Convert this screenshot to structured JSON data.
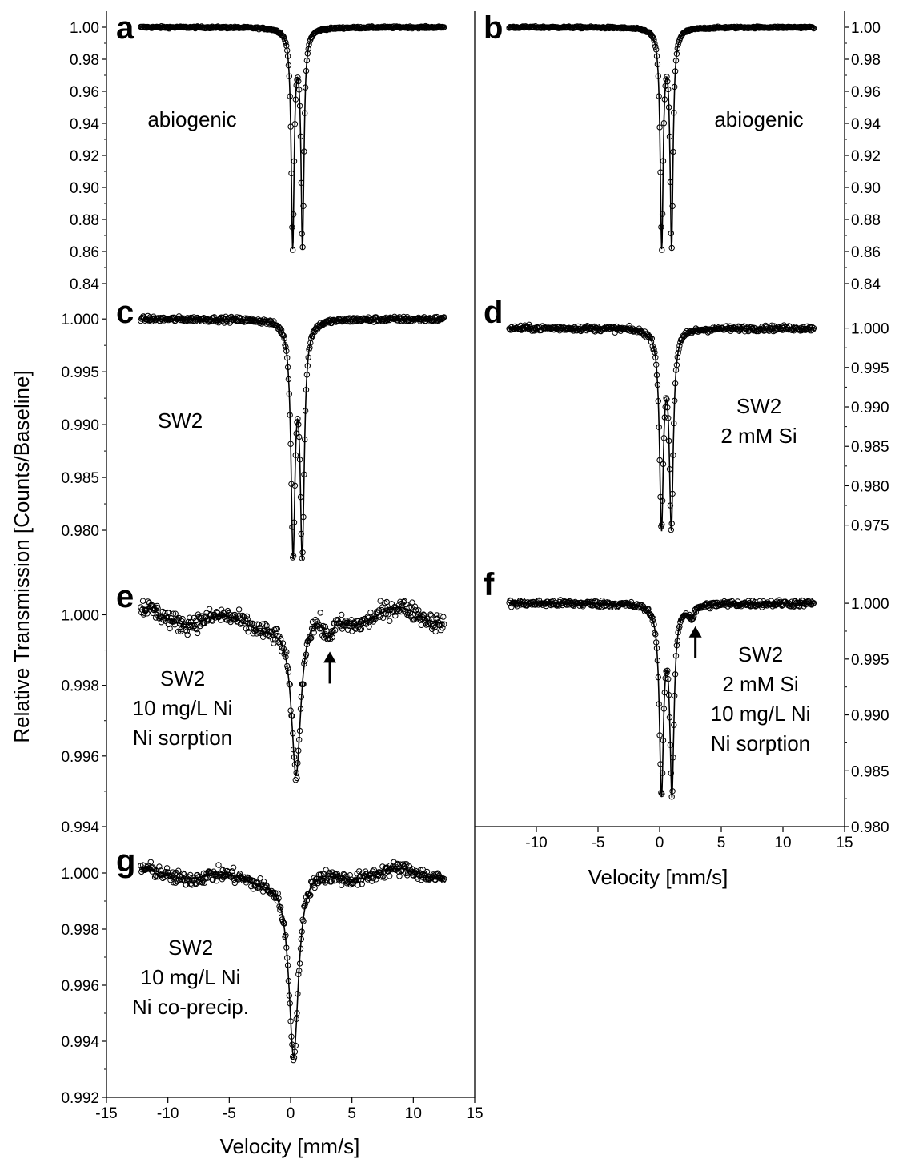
{
  "figure": {
    "y_axis_title": "Relative Transmission [Counts/Baseline]",
    "x_axis_title_bottom": "Velocity [mm/s]",
    "x_axis_title_right": "Velocity [mm/s]"
  },
  "chart_data": [
    {
      "panel": "a",
      "type": "scatter",
      "fit": "line",
      "label": "abiogenic",
      "xlabel": "Velocity [mm/s]",
      "ylabel": "Relative Transmission [Counts/Baseline]",
      "xlim": [
        -15,
        15
      ],
      "ylim": [
        0.84,
        1.0
      ],
      "x_range": [
        -12.2,
        12.5
      ],
      "yticks": [
        0.84,
        0.86,
        0.88,
        0.9,
        0.92,
        0.94,
        0.96,
        0.98,
        1.0
      ],
      "ytick_labels": [
        "0.84",
        "0.86",
        "0.88",
        "0.90",
        "0.92",
        "0.94",
        "0.96",
        "0.98",
        "1.00"
      ],
      "baseline": 1.0,
      "noise": 0.0006,
      "peaks": [
        {
          "center": 0.17,
          "depth": 0.135,
          "width": 0.29
        },
        {
          "center": 0.97,
          "depth": 0.135,
          "width": 0.29
        }
      ],
      "arrow_at": null
    },
    {
      "panel": "b",
      "type": "scatter",
      "fit": "line",
      "label": "abiogenic",
      "xlabel": "Velocity [mm/s]",
      "ylabel": "Relative Transmission [Counts/Baseline]",
      "xlim": [
        -15,
        15
      ],
      "ylim": [
        0.84,
        1.0
      ],
      "x_range": [
        -12.2,
        12.5
      ],
      "yticks": [
        0.84,
        0.86,
        0.88,
        0.9,
        0.92,
        0.94,
        0.96,
        0.98,
        1.0
      ],
      "ytick_labels": [
        "0.84",
        "0.86",
        "0.88",
        "0.90",
        "0.92",
        "0.94",
        "0.96",
        "0.98",
        "1.00"
      ],
      "baseline": 1.0,
      "noise": 0.0006,
      "peaks": [
        {
          "center": 0.17,
          "depth": 0.135,
          "width": 0.29
        },
        {
          "center": 0.97,
          "depth": 0.135,
          "width": 0.29
        }
      ],
      "arrow_at": null
    },
    {
      "panel": "c",
      "type": "scatter",
      "fit": "line",
      "label": "SW2",
      "xlabel": "Velocity [mm/s]",
      "ylabel": "Relative Transmission [Counts/Baseline]",
      "xlim": [
        -15,
        15
      ],
      "ylim": [
        0.9775,
        1.001
      ],
      "x_range": [
        -12.2,
        12.5
      ],
      "yticks": [
        0.98,
        0.985,
        0.99,
        0.995,
        1.0
      ],
      "ytick_labels": [
        "0.980",
        "0.985",
        "0.990",
        "0.995",
        "1.000"
      ],
      "baseline": 1.0,
      "noise": 0.00025,
      "peaks": [
        {
          "center": 0.2,
          "depth": 0.0213,
          "width": 0.4
        },
        {
          "center": 0.95,
          "depth": 0.0215,
          "width": 0.4
        }
      ],
      "arrow_at": null
    },
    {
      "panel": "d",
      "type": "scatter",
      "fit": "line",
      "label": "SW2\n2 mM Si",
      "xlabel": "Velocity [mm/s]",
      "ylabel": "Relative Transmission [Counts/Baseline]",
      "xlim": [
        -15,
        15
      ],
      "ylim": [
        0.971,
        1.0025
      ],
      "x_range": [
        -12.2,
        12.5
      ],
      "yticks": [
        0.975,
        0.98,
        0.985,
        0.99,
        0.995,
        1.0
      ],
      "ytick_labels": [
        "0.975",
        "0.980",
        "0.985",
        "0.990",
        "0.995",
        "1.000"
      ],
      "baseline": 1.0,
      "noise": 0.00035,
      "peaks": [
        {
          "center": 0.15,
          "depth": 0.0245,
          "width": 0.38
        },
        {
          "center": 0.95,
          "depth": 0.0245,
          "width": 0.38
        }
      ],
      "arrow_at": null
    },
    {
      "panel": "e",
      "type": "scatter",
      "fit": "line",
      "label": "SW2\n10 mg/L Ni\nNi sorption",
      "xlabel": "Velocity [mm/s]",
      "ylabel": "Relative Transmission [Counts/Baseline]",
      "xlim": [
        -15,
        15
      ],
      "ylim": [
        0.994,
        1.0006
      ],
      "x_range": [
        -12.2,
        12.5
      ],
      "yticks": [
        0.994,
        0.996,
        0.998,
        1.0
      ],
      "ytick_labels": [
        "0.994",
        "0.996",
        "0.998",
        "1.000"
      ],
      "baseline": 1.0,
      "noise": 0.00025,
      "wiggle": 0.00045,
      "peaks": [
        {
          "center": 0.45,
          "depth": 0.0046,
          "width": 0.95
        },
        {
          "center": 3.0,
          "depth": 0.0006,
          "width": 0.9
        }
      ],
      "arrow_at": 3.2
    },
    {
      "panel": "f",
      "type": "scatter",
      "fit": "line",
      "label": "SW2\n2 mM Si\n10 mg/L Ni\nNi sorption",
      "xlabel": "Velocity [mm/s]",
      "ylabel": "Relative Transmission [Counts/Baseline]",
      "xlim": [
        -15,
        15
      ],
      "ylim": [
        0.98,
        1.0018
      ],
      "x_range": [
        -12.2,
        12.5
      ],
      "yticks": [
        0.98,
        0.985,
        0.99,
        0.995,
        1.0
      ],
      "ytick_labels": [
        "0.980",
        "0.985",
        "0.990",
        "0.995",
        "1.000"
      ],
      "baseline": 1.0,
      "noise": 0.0003,
      "peaks": [
        {
          "center": 0.15,
          "depth": 0.0165,
          "width": 0.4
        },
        {
          "center": 1.0,
          "depth": 0.0165,
          "width": 0.4
        },
        {
          "center": 2.6,
          "depth": 0.001,
          "width": 0.6
        }
      ],
      "arrow_at": 2.9
    },
    {
      "panel": "g",
      "type": "scatter",
      "fit": "line",
      "label": "SW2\n10 mg/L Ni\nNi  co-precip.",
      "xlabel": "Velocity [mm/s]",
      "ylabel": "Relative Transmission [Counts/Baseline]",
      "xlim": [
        -15,
        15
      ],
      "ylim": [
        0.992,
        1.0006
      ],
      "x_range": [
        -12.2,
        12.5
      ],
      "yticks": [
        0.992,
        0.994,
        0.996,
        0.998,
        1.0
      ],
      "ytick_labels": [
        "0.992",
        "0.994",
        "0.996",
        "0.998",
        "1.000"
      ],
      "xticks": [
        -15,
        -10,
        -5,
        0,
        5,
        10,
        15
      ],
      "xtick_labels": [
        "-15",
        "-10",
        "-5",
        "0",
        "5",
        "10",
        "15"
      ],
      "baseline": 1.0,
      "noise": 0.00025,
      "wiggle": 0.00035,
      "peaks": [
        {
          "center": 0.25,
          "depth": 0.0066,
          "width": 0.95
        }
      ],
      "arrow_at": null
    }
  ],
  "right_axis_x": {
    "xticks": [
      -10,
      -5,
      0,
      5,
      10,
      15
    ],
    "xtick_labels": [
      "-10",
      "-5",
      "0",
      "5",
      "10",
      "15"
    ]
  }
}
